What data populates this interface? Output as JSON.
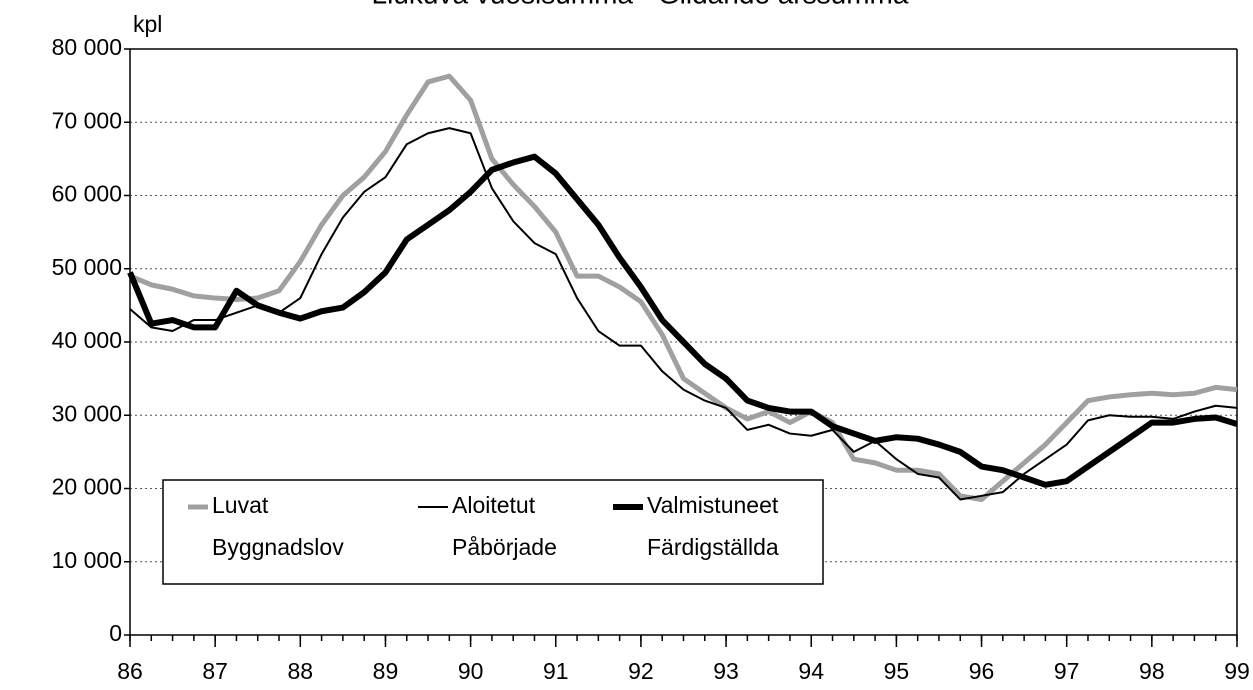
{
  "chart_data": {
    "type": "line",
    "title": "Liukuva vuosisumma - Glidande årssumma",
    "y_label": "kpl",
    "x": [
      86,
      86.25,
      86.5,
      86.75,
      87,
      87.25,
      87.5,
      87.75,
      88,
      88.25,
      88.5,
      88.75,
      89,
      89.25,
      89.5,
      89.75,
      90,
      90.25,
      90.5,
      90.75,
      91,
      91.25,
      91.5,
      91.75,
      92,
      92.25,
      92.5,
      92.75,
      93,
      93.25,
      93.5,
      93.75,
      94,
      94.25,
      94.5,
      94.75,
      95,
      95.25,
      95.5,
      95.75,
      96,
      96.25,
      96.5,
      96.75,
      97,
      97.25,
      97.5,
      97.75,
      98,
      98.25,
      98.5,
      98.75,
      99
    ],
    "series": [
      {
        "name": "Luvat",
        "subname": "Byggnadslov",
        "color": "#a0a0a0",
        "width": 5,
        "values": [
          49000,
          47800,
          47200,
          46300,
          46000,
          45800,
          46000,
          47000,
          51000,
          56000,
          60000,
          62500,
          66000,
          71000,
          75500,
          76300,
          73000,
          65000,
          61500,
          58500,
          55000,
          49000,
          49000,
          47500,
          45500,
          41000,
          35000,
          33000,
          31000,
          29500,
          30500,
          29000,
          30500,
          29000,
          24000,
          23500,
          22500,
          22500,
          22000,
          19000,
          18500,
          21000,
          23500,
          26000,
          29000,
          32000,
          32500,
          32800,
          33000,
          32800,
          33000,
          33800,
          33500
        ]
      },
      {
        "name": "Aloitetut",
        "subname": "Påbörjade",
        "color": "#000000",
        "width": 2,
        "values": [
          44500,
          42000,
          41500,
          43000,
          43000,
          44000,
          45000,
          44000,
          46000,
          52000,
          57000,
          60500,
          62500,
          67000,
          68500,
          69200,
          68500,
          61000,
          56500,
          53500,
          52000,
          46000,
          41500,
          39500,
          39500,
          36000,
          33500,
          32000,
          31000,
          28000,
          28700,
          27500,
          27200,
          28000,
          25000,
          26500,
          24000,
          22000,
          21500,
          18500,
          19000,
          19500,
          22000,
          24000,
          26000,
          29300,
          30000,
          29800,
          29800,
          29500,
          30500,
          31300,
          31000
        ]
      },
      {
        "name": "Valmistuneet",
        "subname": "Färdigställda",
        "color": "#000000",
        "width": 6,
        "values": [
          49500,
          42500,
          43000,
          42000,
          42000,
          47000,
          45000,
          44000,
          43200,
          44200,
          44700,
          46800,
          49500,
          54000,
          56000,
          58000,
          60500,
          63500,
          64500,
          65300,
          63000,
          59500,
          56000,
          51500,
          47500,
          43000,
          40000,
          37000,
          35000,
          32000,
          31000,
          30500,
          30500,
          28500,
          27500,
          26500,
          27000,
          26800,
          26000,
          25000,
          23000,
          22500,
          21500,
          20500,
          21000,
          23000,
          25000,
          27000,
          29000,
          29000,
          29500,
          29700,
          28800
        ]
      }
    ],
    "xlim": [
      86,
      99
    ],
    "xticks": [
      86,
      87,
      88,
      89,
      90,
      91,
      92,
      93,
      94,
      95,
      96,
      97,
      98,
      99
    ],
    "ylim": [
      0,
      80000
    ],
    "yticks": [
      0,
      {
        "value": 10000,
        "label": "10 000"
      },
      {
        "value": 20000,
        "label": "20 000"
      },
      {
        "value": 30000,
        "label": "30 000"
      },
      {
        "value": 40000,
        "label": "40 000"
      },
      {
        "value": 50000,
        "label": "50 000"
      },
      {
        "value": 60000,
        "label": "60 000"
      },
      {
        "value": 70000,
        "label": "70 000"
      },
      {
        "value": 80000,
        "label": "80 000"
      }
    ],
    "grid": true,
    "legend": "lower left"
  }
}
